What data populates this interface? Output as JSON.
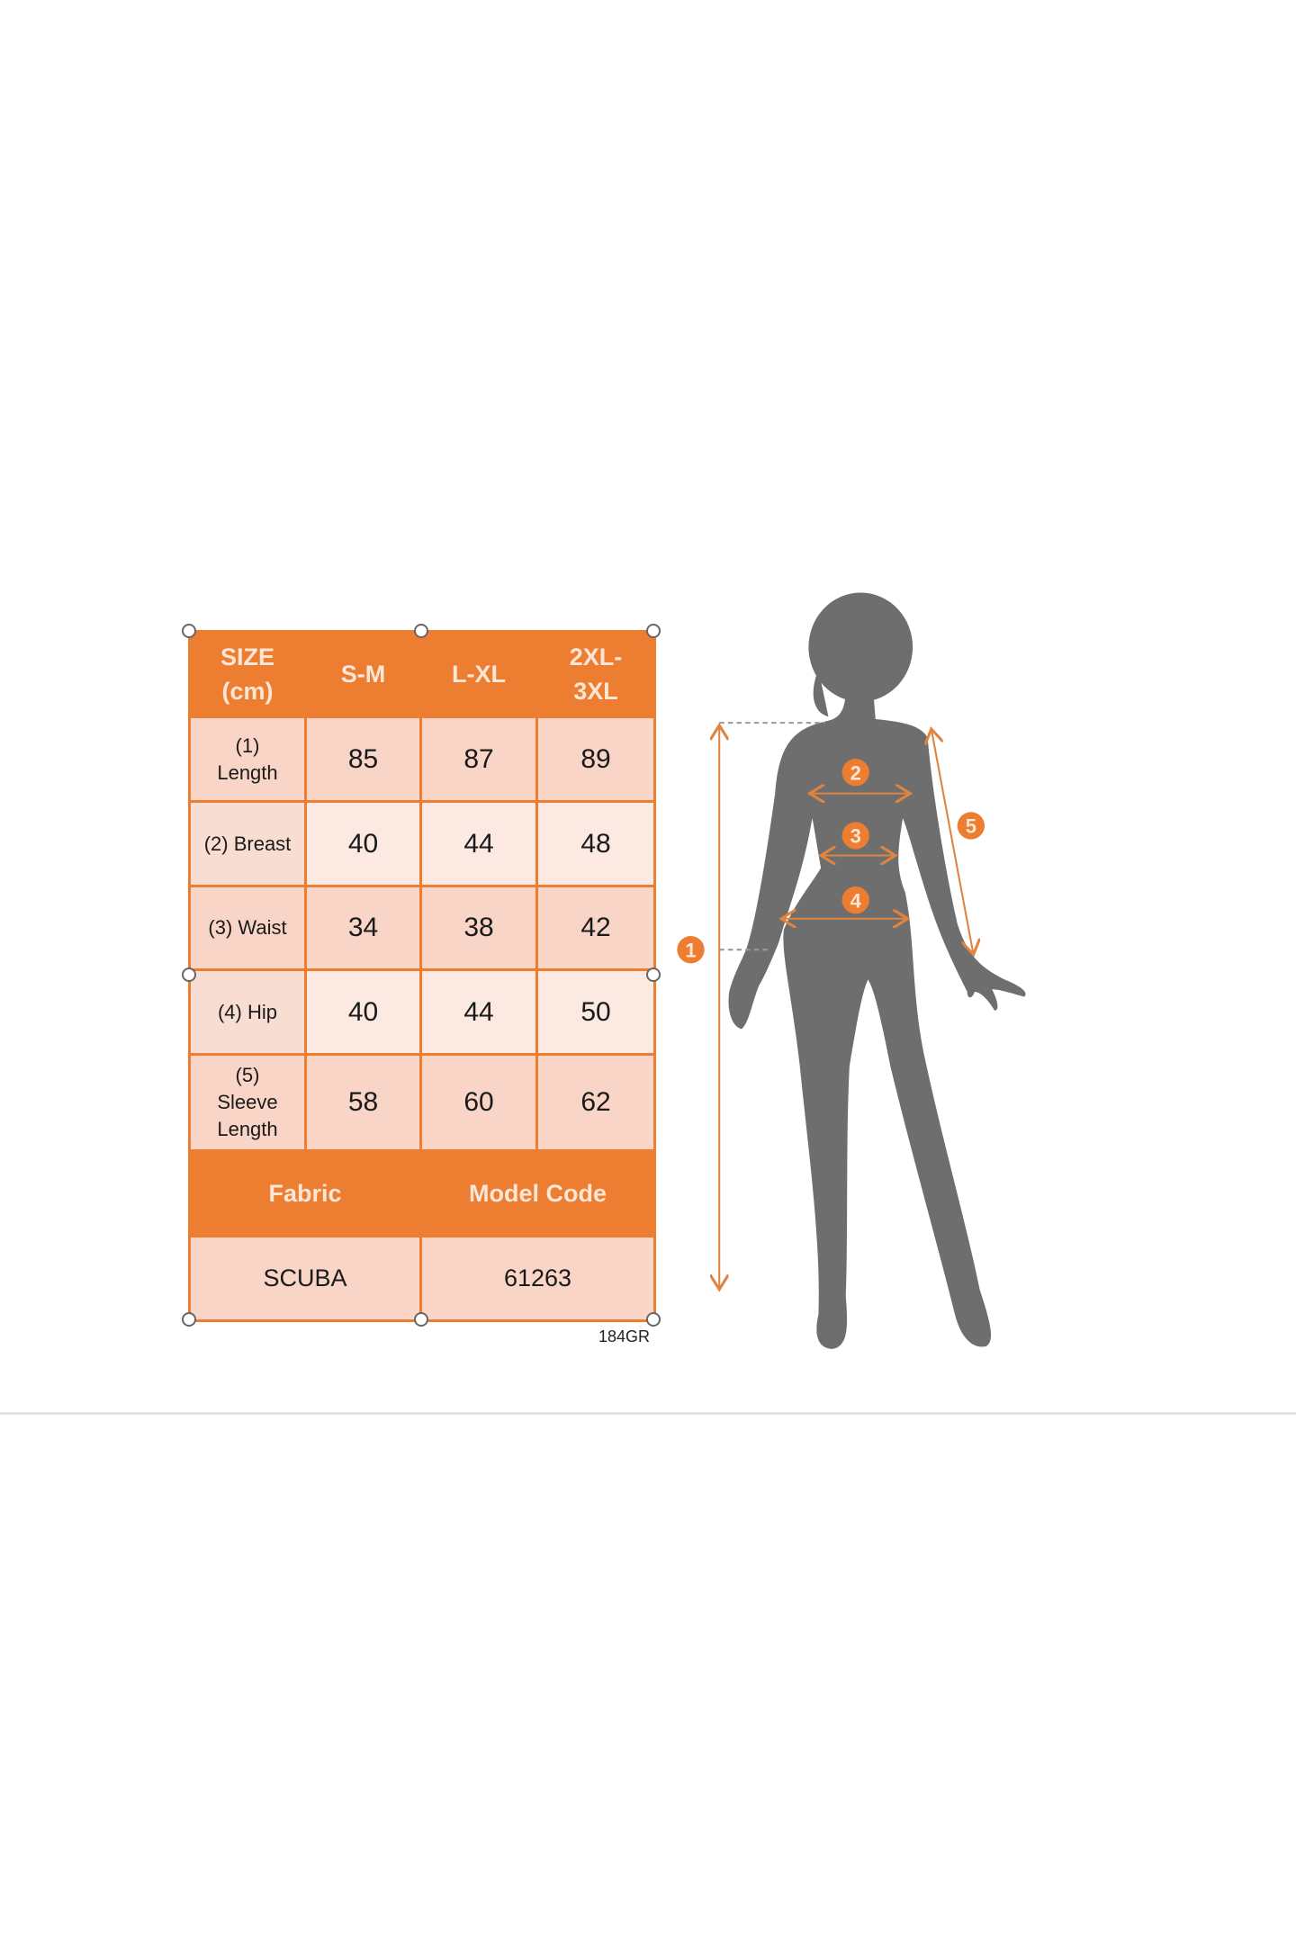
{
  "size_chart": {
    "header": [
      "SIZE (cm)",
      "S-M",
      "L-XL",
      "2XL-3XL"
    ],
    "header_lines": [
      [
        "SIZE",
        "(cm)"
      ],
      [
        "S-M"
      ],
      [
        "L-XL"
      ],
      [
        "2XL-",
        "3XL"
      ]
    ],
    "rows": [
      {
        "label_lines": [
          "(1)",
          "Length"
        ],
        "values": [
          "85",
          "87",
          "89"
        ]
      },
      {
        "label_lines": [
          "(2) Breast"
        ],
        "values": [
          "40",
          "44",
          "48"
        ]
      },
      {
        "label_lines": [
          "(3) Waist"
        ],
        "values": [
          "34",
          "38",
          "42"
        ]
      },
      {
        "label_lines": [
          "(4) Hip"
        ],
        "values": [
          "40",
          "44",
          "50"
        ]
      },
      {
        "label_lines": [
          "(5)",
          "Sleeve",
          "Length"
        ],
        "values": [
          "58",
          "60",
          "62"
        ]
      }
    ],
    "footer_headers": [
      "Fabric",
      "Model Code"
    ],
    "footer_values": [
      "SCUBA",
      "61263"
    ],
    "code": "184GR"
  },
  "figure": {
    "markers": [
      "1",
      "2",
      "3",
      "4",
      "5"
    ]
  },
  "colors": {
    "accent": "#ED7D31",
    "silhouette": "#6E6E6E",
    "cell_dark": "#F8D5C6",
    "cell_light": "#FBE9E2"
  }
}
